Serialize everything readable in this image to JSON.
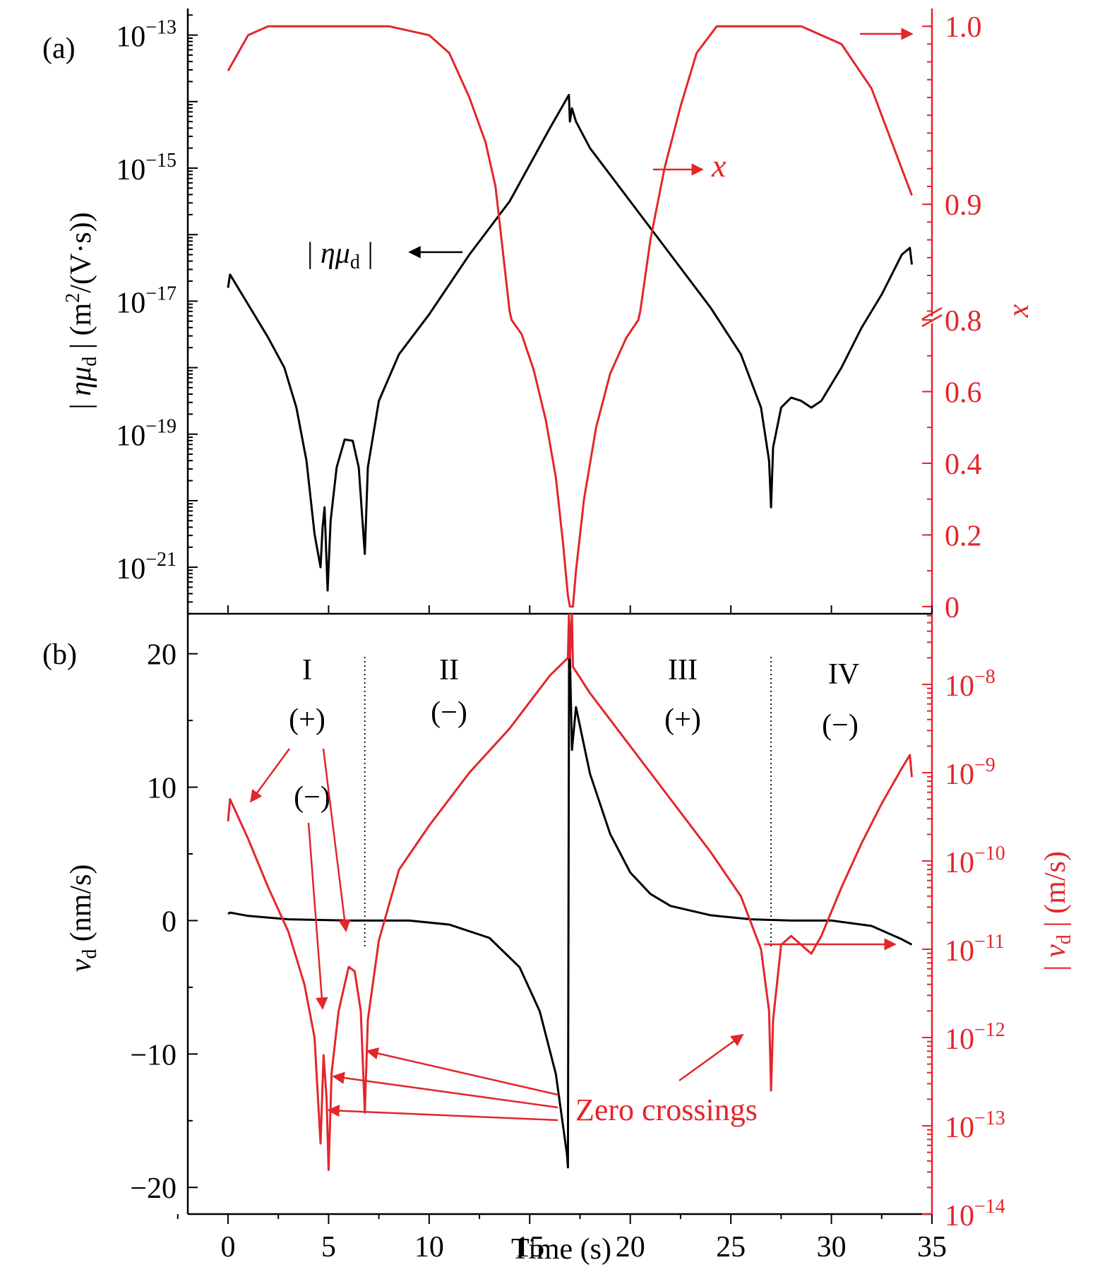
{
  "colors": {
    "black_series": "#000000",
    "red_series": "#e3262c",
    "background": "#ffffff"
  },
  "chart_data": [
    {
      "type": "line",
      "panel": "(a)",
      "xlabel": "Time (s)",
      "xlim": [
        -2,
        35
      ],
      "x_ticks": [
        0,
        5,
        10,
        15,
        20,
        25,
        30,
        35
      ],
      "y_left": {
        "label_parts": {
          "abs_open": "|",
          "sym_eta": "η",
          "sym_mu": "μ",
          "sub": "d",
          "abs_close": "|",
          "units_open": "(m",
          "units_exp": "2",
          "units_close": "/(V·s))"
        },
        "scale": "log",
        "ylim_exp": [
          -21.7,
          -12.6
        ],
        "tick_exponents": [
          -13,
          -15,
          -17,
          -19,
          -21
        ],
        "tick_base": "10"
      },
      "y_right": {
        "label": "x",
        "scale": "broken-linear",
        "upper_ticks": [
          "1.0",
          "0.9"
        ],
        "lower_ticks": [
          "0.8",
          "0.6",
          "0.4",
          "0.2",
          "0"
        ],
        "upper_range": [
          0.835,
          1.01
        ],
        "lower_range": [
          -0.02,
          0.8
        ]
      },
      "series": [
        {
          "name_parts": {
            "abs_open": "|",
            "sym_eta": "η",
            "sym_mu": "μ",
            "sub": "d",
            "abs_close": "|"
          },
          "color": "#000000",
          "axis": "left",
          "y_log10": [
            [
              0.0,
              -16.8
            ],
            [
              0.1,
              -16.6
            ],
            [
              1.0,
              -17.05
            ],
            [
              2.0,
              -17.55
            ],
            [
              2.8,
              -18.0
            ],
            [
              3.4,
              -18.6
            ],
            [
              3.9,
              -19.4
            ],
            [
              4.3,
              -20.5
            ],
            [
              4.6,
              -21.0
            ],
            [
              4.7,
              -20.4
            ],
            [
              4.8,
              -20.1
            ],
            [
              4.95,
              -21.35
            ],
            [
              5.1,
              -20.3
            ],
            [
              5.4,
              -19.5
            ],
            [
              5.8,
              -19.08
            ],
            [
              6.2,
              -19.1
            ],
            [
              6.5,
              -19.5
            ],
            [
              6.8,
              -20.8
            ],
            [
              6.95,
              -19.5
            ],
            [
              7.5,
              -18.5
            ],
            [
              8.5,
              -17.8
            ],
            [
              10.0,
              -17.2
            ],
            [
              12.0,
              -16.3
            ],
            [
              14.0,
              -15.5
            ],
            [
              16.0,
              -14.4
            ],
            [
              16.95,
              -13.9
            ],
            [
              17.0,
              -14.3
            ],
            [
              17.1,
              -14.1
            ],
            [
              17.3,
              -14.3
            ],
            [
              18.0,
              -14.7
            ],
            [
              20.0,
              -15.5
            ],
            [
              22.0,
              -16.3
            ],
            [
              24.0,
              -17.1
            ],
            [
              25.5,
              -17.8
            ],
            [
              26.5,
              -18.6
            ],
            [
              26.9,
              -19.4
            ],
            [
              27.0,
              -20.1
            ],
            [
              27.1,
              -19.2
            ],
            [
              27.5,
              -18.6
            ],
            [
              28.0,
              -18.45
            ],
            [
              28.5,
              -18.5
            ],
            [
              29.0,
              -18.6
            ],
            [
              29.5,
              -18.5
            ],
            [
              30.5,
              -18.0
            ],
            [
              31.5,
              -17.4
            ],
            [
              32.5,
              -16.9
            ],
            [
              33.5,
              -16.3
            ],
            [
              33.9,
              -16.2
            ],
            [
              34.0,
              -16.45
            ]
          ]
        },
        {
          "name": "x",
          "color": "#e3262c",
          "axis": "right",
          "x_values": [
            [
              0.0,
              0.975
            ],
            [
              1.0,
              0.995
            ],
            [
              2.0,
              1.0
            ],
            [
              4.0,
              1.0
            ],
            [
              8.0,
              1.0
            ],
            [
              10.0,
              0.995
            ],
            [
              11.0,
              0.985
            ],
            [
              12.0,
              0.96
            ],
            [
              12.8,
              0.935
            ],
            [
              13.3,
              0.91
            ],
            [
              13.6,
              0.88
            ],
            [
              13.9,
              0.85
            ],
            [
              14.0,
              0.84
            ],
            [
              14.1,
              0.8
            ],
            [
              14.6,
              0.76
            ],
            [
              15.2,
              0.66
            ],
            [
              15.8,
              0.52
            ],
            [
              16.3,
              0.36
            ],
            [
              16.65,
              0.18
            ],
            [
              16.9,
              0.03
            ],
            [
              17.0,
              0.0
            ],
            [
              17.15,
              0.0
            ],
            [
              17.3,
              0.1
            ],
            [
              17.7,
              0.3
            ],
            [
              18.3,
              0.5
            ],
            [
              19.0,
              0.65
            ],
            [
              19.8,
              0.75
            ],
            [
              20.4,
              0.8
            ],
            [
              20.5,
              0.84
            ],
            [
              21.0,
              0.88
            ],
            [
              21.7,
              0.92
            ],
            [
              22.5,
              0.955
            ],
            [
              23.3,
              0.985
            ],
            [
              24.3,
              1.0
            ],
            [
              26.0,
              1.0
            ],
            [
              28.5,
              1.0
            ],
            [
              30.5,
              0.99
            ],
            [
              32.0,
              0.965
            ],
            [
              33.0,
              0.935
            ],
            [
              34.0,
              0.905
            ]
          ]
        }
      ],
      "annotations": {
        "panel_label": "(a)",
        "series_label_eta": "|ημd|",
        "series_label_x": "x"
      }
    },
    {
      "type": "line",
      "panel": "(b)",
      "xlabel": "Time (s)",
      "xlim": [
        -2,
        35
      ],
      "x_ticks": [
        0,
        5,
        10,
        15,
        20,
        25,
        30,
        35
      ],
      "y_left": {
        "label_sym": "v",
        "label_sub": "d",
        "label_units": "(nm/s)",
        "ylim": [
          -22,
          23
        ],
        "ticks": [
          20,
          10,
          0,
          -10,
          -20
        ]
      },
      "y_right": {
        "label_parts": {
          "abs_open": "|",
          "sym_v": "v",
          "sub": "d",
          "abs_close": "|",
          "units": "(m/s)"
        },
        "scale": "log",
        "ylim_exp": [
          -14,
          -7.2
        ],
        "tick_exponents": [
          -8,
          -9,
          -10,
          -11,
          -12,
          -13,
          -14
        ],
        "tick_base": "10"
      },
      "series": [
        {
          "name": "v_d (nm/s)",
          "color": "#000000",
          "axis": "left",
          "values": [
            [
              0.0,
              0.5
            ],
            [
              0.1,
              0.6
            ],
            [
              1.0,
              0.35
            ],
            [
              3.0,
              0.1
            ],
            [
              6.0,
              0.0
            ],
            [
              9.0,
              0.0
            ],
            [
              11.0,
              -0.3
            ],
            [
              13.0,
              -1.3
            ],
            [
              14.5,
              -3.5
            ],
            [
              15.5,
              -6.8
            ],
            [
              16.3,
              -11.5
            ],
            [
              16.85,
              -17.5
            ],
            [
              16.9,
              -18.5
            ],
            [
              16.96,
              22.5
            ],
            [
              17.1,
              12.8
            ],
            [
              17.3,
              16.0
            ],
            [
              18.0,
              11.0
            ],
            [
              19.0,
              6.5
            ],
            [
              20.0,
              3.6
            ],
            [
              21.0,
              2.0
            ],
            [
              22.0,
              1.1
            ],
            [
              24.0,
              0.4
            ],
            [
              26.0,
              0.1
            ],
            [
              28.0,
              0.0
            ],
            [
              30.0,
              0.0
            ],
            [
              32.0,
              -0.4
            ],
            [
              33.5,
              -1.4
            ],
            [
              34.0,
              -1.8
            ]
          ]
        },
        {
          "name": "|v_d| (m/s)",
          "color": "#e3262c",
          "axis": "right",
          "values_log10": [
            [
              0.0,
              -9.55
            ],
            [
              0.1,
              -9.3
            ],
            [
              1.0,
              -9.75
            ],
            [
              2.0,
              -10.3
            ],
            [
              3.0,
              -10.8
            ],
            [
              3.8,
              -11.4
            ],
            [
              4.3,
              -12.0
            ],
            [
              4.6,
              -13.2
            ],
            [
              4.75,
              -12.2
            ],
            [
              4.9,
              -12.7
            ],
            [
              5.0,
              -13.5
            ],
            [
              5.15,
              -12.4
            ],
            [
              5.5,
              -11.7
            ],
            [
              6.0,
              -11.2
            ],
            [
              6.3,
              -11.25
            ],
            [
              6.6,
              -11.7
            ],
            [
              6.8,
              -12.85
            ],
            [
              6.95,
              -11.8
            ],
            [
              7.5,
              -10.9
            ],
            [
              8.5,
              -10.1
            ],
            [
              10.0,
              -9.6
            ],
            [
              12.0,
              -9.0
            ],
            [
              14.0,
              -8.5
            ],
            [
              16.0,
              -7.9
            ],
            [
              16.9,
              -7.7
            ],
            [
              16.95,
              -7.2
            ],
            [
              17.0,
              -7.7
            ],
            [
              17.1,
              -7.2
            ],
            [
              17.15,
              -7.8
            ],
            [
              18.0,
              -8.1
            ],
            [
              20.0,
              -8.7
            ],
            [
              22.0,
              -9.3
            ],
            [
              24.0,
              -9.9
            ],
            [
              25.5,
              -10.4
            ],
            [
              26.5,
              -11.0
            ],
            [
              26.9,
              -11.7
            ],
            [
              27.0,
              -12.6
            ],
            [
              27.1,
              -11.8
            ],
            [
              27.5,
              -10.95
            ],
            [
              28.0,
              -10.85
            ],
            [
              28.5,
              -10.95
            ],
            [
              29.0,
              -11.05
            ],
            [
              29.5,
              -10.85
            ],
            [
              30.5,
              -10.3
            ],
            [
              31.5,
              -9.8
            ],
            [
              32.5,
              -9.35
            ],
            [
              33.5,
              -8.95
            ],
            [
              33.9,
              -8.8
            ],
            [
              34.0,
              -9.05
            ]
          ]
        }
      ],
      "regions": [
        {
          "label": "I",
          "sign": "(+)",
          "sign2": "(−)"
        },
        {
          "label": "II",
          "sign": "(−)"
        },
        {
          "label": "III",
          "sign": "(+)"
        },
        {
          "label": "IV",
          "sign": "(−)"
        }
      ],
      "region_dividers_x": [
        6.8,
        27.0
      ],
      "annotations": {
        "panel_label": "(b)",
        "zero_crossings": "Zero crossings"
      }
    }
  ]
}
